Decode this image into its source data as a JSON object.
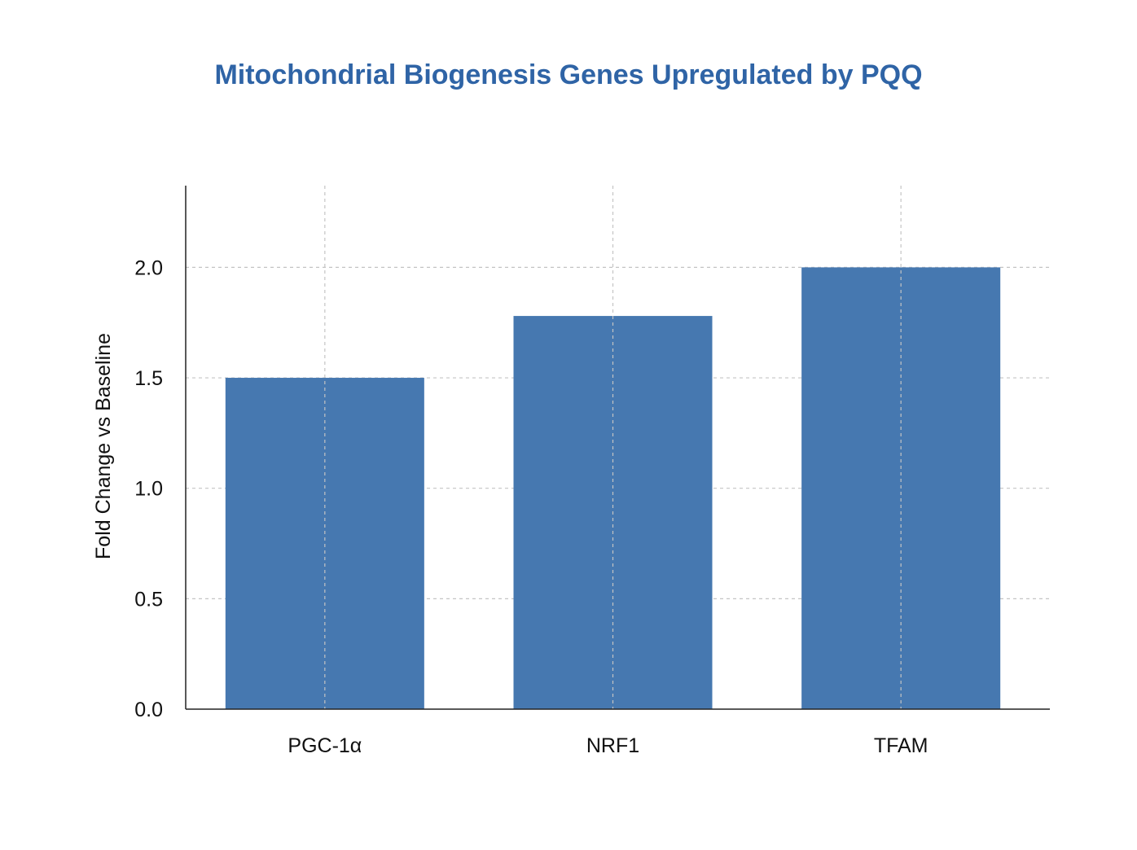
{
  "chart_data": {
    "type": "bar",
    "title": "Mitochondrial Biogenesis Genes Upregulated by PQQ",
    "xlabel": "",
    "ylabel": "Fold Change vs Baseline",
    "categories": [
      "PGC-1α",
      "NRF1",
      "TFAM"
    ],
    "values": [
      1.5,
      1.78,
      2.0
    ],
    "ylim": [
      0,
      2.37
    ],
    "yticks": [
      0.0,
      0.5,
      1.0,
      1.5,
      2.0
    ],
    "ytick_labels": [
      "0.0",
      "0.5",
      "1.0",
      "1.5",
      "2.0"
    ],
    "grid": true,
    "legend": "none"
  },
  "colors": {
    "bar": "#4678b0",
    "title": "#2f64a6",
    "grid": "#c4c4c4",
    "axis": "#222222"
  }
}
